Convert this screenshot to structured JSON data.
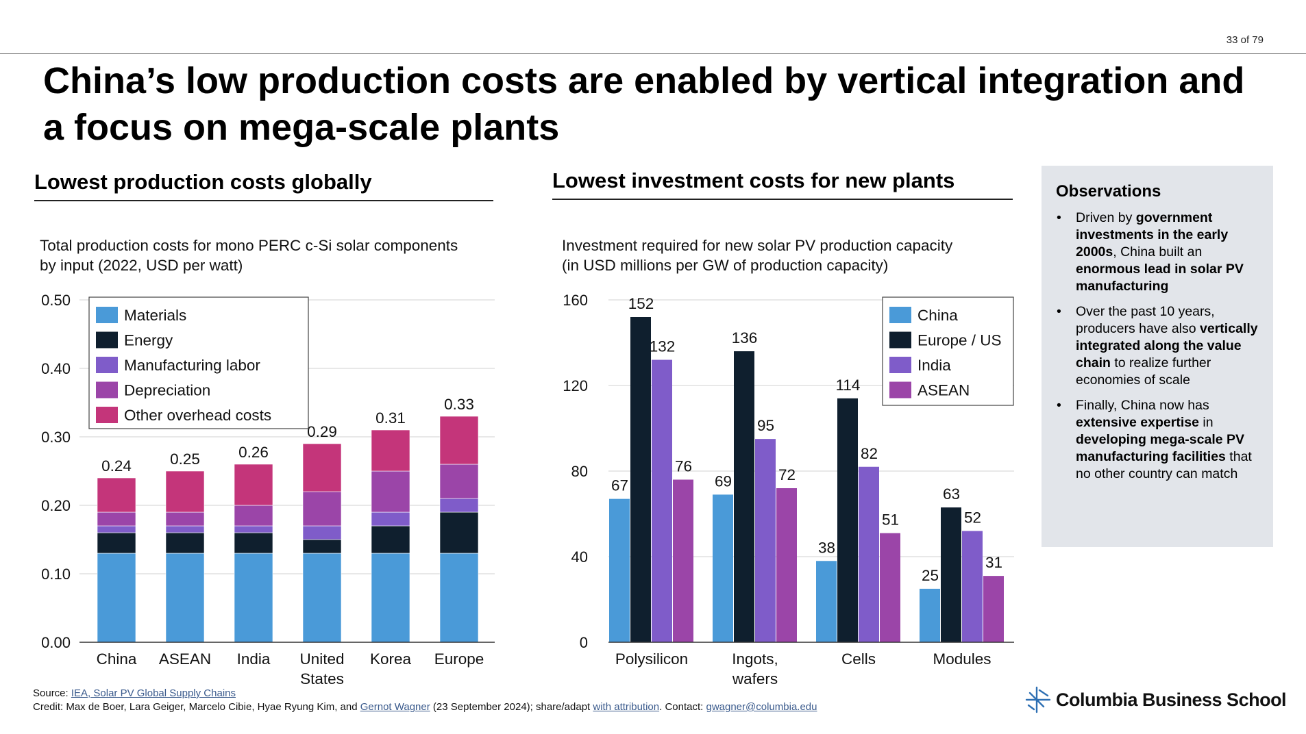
{
  "page_number": "33 of 79",
  "title": "China’s low production costs are enabled by vertical integration and a focus on mega-scale plants",
  "left_section": {
    "heading": "Lowest production costs globally",
    "subtitle_line1": "Total production costs for mono PERC c-Si solar components",
    "subtitle_line2": "by input (2022, USD per watt)"
  },
  "right_section": {
    "heading": "Lowest investment costs for new plants",
    "subtitle_line1": "Investment required for new solar PV production capacity",
    "subtitle_line2": "(in USD millions per GW of production capacity)"
  },
  "chart_data": [
    {
      "type": "bar",
      "stacked": true,
      "categories": [
        [
          "China"
        ],
        [
          "ASEAN"
        ],
        [
          "India"
        ],
        [
          "United",
          "States"
        ],
        [
          "Korea"
        ],
        [
          "Europe"
        ]
      ],
      "series": [
        {
          "name": "Materials",
          "color": "#4a9ad8",
          "values": [
            0.13,
            0.13,
            0.13,
            0.13,
            0.13,
            0.13
          ]
        },
        {
          "name": "Energy",
          "color": "#0f1f2e",
          "values": [
            0.03,
            0.03,
            0.03,
            0.02,
            0.04,
            0.06
          ]
        },
        {
          "name": "Manufacturing labor",
          "color": "#7f5cc9",
          "values": [
            0.01,
            0.01,
            0.01,
            0.02,
            0.02,
            0.02
          ]
        },
        {
          "name": "Depreciation",
          "color": "#9b45a8",
          "values": [
            0.02,
            0.02,
            0.03,
            0.05,
            0.06,
            0.05
          ]
        },
        {
          "name": "Other overhead costs",
          "color": "#c4357a",
          "values": [
            0.05,
            0.06,
            0.06,
            0.07,
            0.06,
            0.07
          ]
        }
      ],
      "totals": [
        "0.24",
        "0.25",
        "0.26",
        "0.29",
        "0.31",
        "0.33"
      ],
      "ylim": [
        0,
        0.5
      ],
      "yticks": [
        "0.00",
        "0.10",
        "0.20",
        "0.30",
        "0.40",
        "0.50"
      ],
      "legend_position": "top-left",
      "grid": true
    },
    {
      "type": "bar",
      "stacked": false,
      "categories": [
        [
          "Polysilicon"
        ],
        [
          "Ingots,",
          "wafers"
        ],
        [
          "Cells"
        ],
        [
          "Modules"
        ]
      ],
      "series": [
        {
          "name": "China",
          "color": "#4a9ad8",
          "values": [
            67,
            69,
            38,
            25
          ]
        },
        {
          "name": "Europe / US",
          "color": "#0f1f2e",
          "values": [
            152,
            136,
            114,
            63
          ]
        },
        {
          "name": "India",
          "color": "#7f5cc9",
          "values": [
            132,
            95,
            82,
            52
          ]
        },
        {
          "name": "ASEAN",
          "color": "#9b45a8",
          "values": [
            76,
            72,
            51,
            31
          ]
        }
      ],
      "ylim": [
        0,
        160
      ],
      "yticks": [
        "0",
        "40",
        "80",
        "120",
        "160"
      ],
      "legend_position": "top-right",
      "grid": true
    }
  ],
  "observations": {
    "title": "Observations",
    "items": [
      [
        [
          "Driven by ",
          false
        ],
        [
          "government investments in the early 2000s",
          true
        ],
        [
          ", China built an ",
          false
        ],
        [
          "enormous lead in solar PV manufacturing",
          true
        ]
      ],
      [
        [
          "Over the past 10 years, producers have also ",
          false
        ],
        [
          "vertically integrated along the value chain",
          true
        ],
        [
          " to realize further economies of scale",
          false
        ]
      ],
      [
        [
          "Finally, China now has ",
          false
        ],
        [
          "extensive expertise",
          true
        ],
        [
          " in ",
          false
        ],
        [
          "developing mega-scale PV manufacturing facilities",
          true
        ],
        [
          " that no other country can match",
          false
        ]
      ]
    ]
  },
  "source": {
    "source_label": "Source: ",
    "source_link": "IEA, Solar PV Global Supply Chains",
    "credit_prefix": "Credit: Max de Boer, Lara Geiger, Marcelo Cibie, Hyae Ryung Kim, and ",
    "author_link": "Gernot Wagner",
    "credit_mid": " (23 September 2024); share/adapt ",
    "attribution_link": "with attribution",
    "contact_label": ". Contact: ",
    "contact_email": "gwagner@columbia.edu"
  },
  "logo": {
    "text": "Columbia Business School",
    "icon": "crown-icon"
  }
}
